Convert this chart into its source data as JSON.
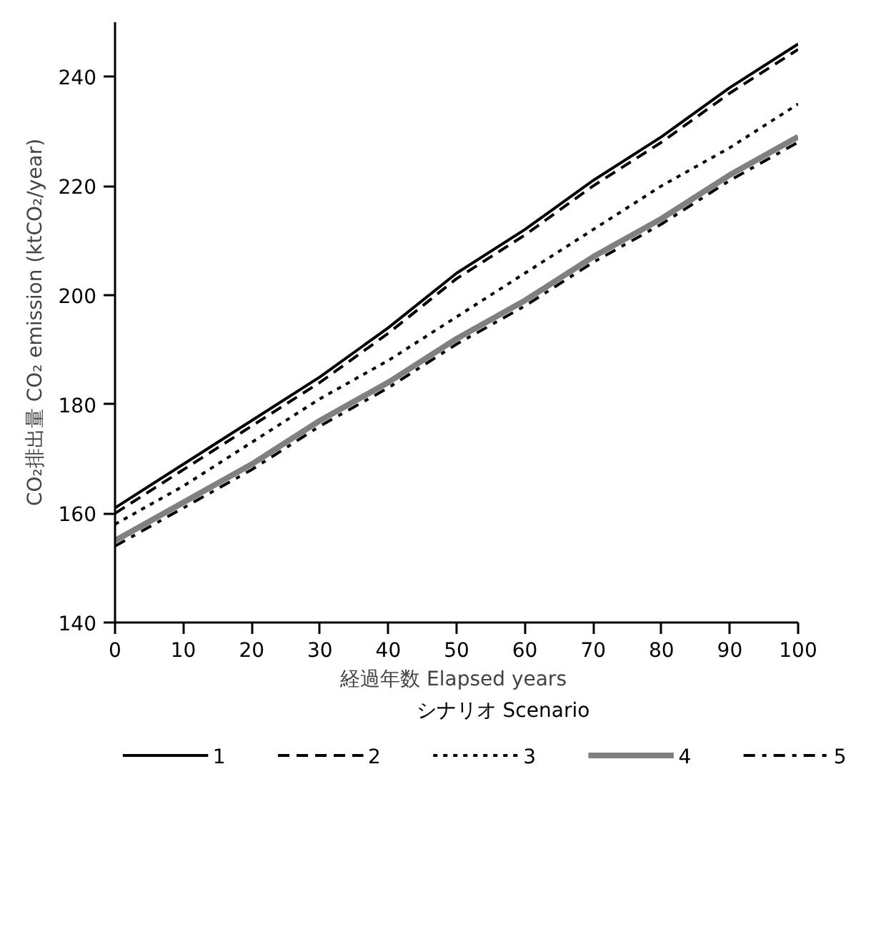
{
  "chart_data": {
    "type": "line",
    "xlabel": "経過年数  Elapsed years",
    "ylabel": "CO₂排出量 CO₂ emission (ktCO₂/year)",
    "legend_title": "シナリオ Scenario",
    "x": [
      0,
      10,
      20,
      30,
      40,
      50,
      60,
      70,
      80,
      90,
      100
    ],
    "series": [
      {
        "name": "1",
        "color": "#000000",
        "line_style": "solid",
        "values": [
          161,
          169,
          177,
          185,
          194,
          204,
          212,
          221,
          229,
          238,
          246
        ]
      },
      {
        "name": "2",
        "color": "#000000",
        "line_style": "dashed",
        "values": [
          160,
          168,
          176,
          184,
          193,
          203,
          211,
          220,
          228,
          237,
          245
        ]
      },
      {
        "name": "3",
        "color": "#000000",
        "line_style": "dotted",
        "values": [
          158,
          165,
          173,
          181,
          188,
          196,
          204,
          212,
          220,
          227,
          235
        ]
      },
      {
        "name": "4",
        "color": "#808080",
        "line_style": "solid",
        "values": [
          155,
          162,
          169,
          177,
          184,
          192,
          199,
          207,
          214,
          222,
          229
        ]
      },
      {
        "name": "5",
        "color": "#000000",
        "line_style": "dashdot",
        "values": [
          154,
          161,
          168,
          176,
          183,
          191,
          198,
          206,
          213,
          221,
          228
        ]
      }
    ],
    "xlim": [
      0,
      100
    ],
    "xticks": [
      0,
      10,
      20,
      30,
      40,
      50,
      60,
      70,
      80,
      90,
      100
    ],
    "ylim": [
      140,
      250
    ],
    "yticks": [
      140,
      160,
      180,
      200,
      220,
      240
    ],
    "grid": false,
    "legend": "bottom",
    "marker": "none"
  }
}
